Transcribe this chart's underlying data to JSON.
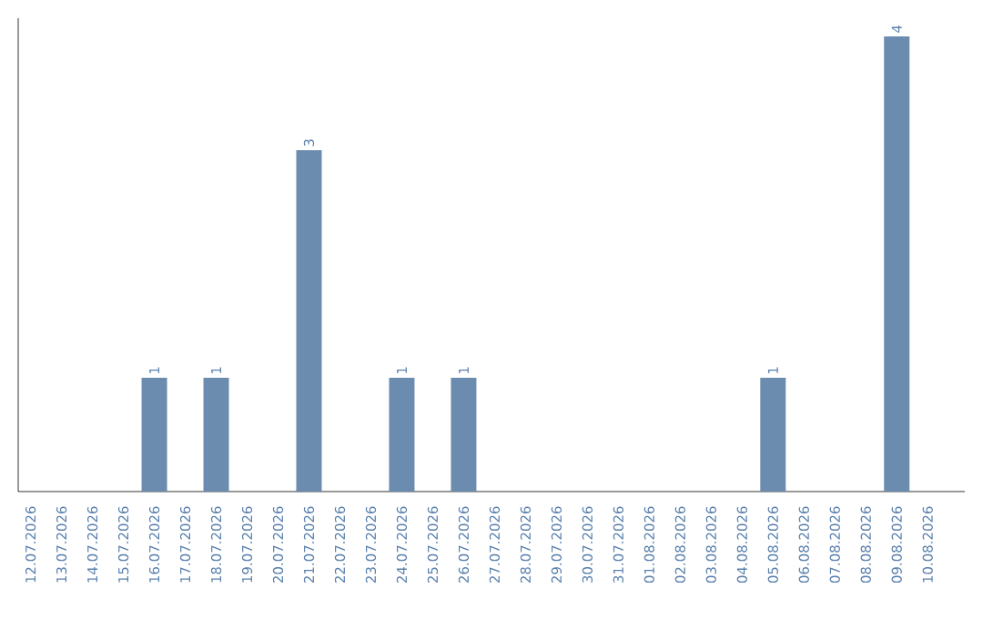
{
  "chart_data": {
    "type": "bar",
    "categories": [
      "12.07.2026",
      "13.07.2026",
      "14.07.2026",
      "15.07.2026",
      "16.07.2026",
      "17.07.2026",
      "18.07.2026",
      "19.07.2026",
      "20.07.2026",
      "21.07.2026",
      "22.07.2026",
      "23.07.2026",
      "24.07.2026",
      "25.07.2026",
      "26.07.2026",
      "27.07.2026",
      "28.07.2026",
      "29.07.2026",
      "30.07.2026",
      "31.07.2026",
      "01.08.2026",
      "02.08.2026",
      "03.08.2026",
      "04.08.2026",
      "05.08.2026",
      "06.08.2026",
      "07.08.2026",
      "08.08.2026",
      "09.08.2026",
      "10.08.2026"
    ],
    "values": [
      0,
      0,
      0,
      0,
      1,
      0,
      1,
      0,
      0,
      3,
      0,
      0,
      1,
      0,
      1,
      0,
      0,
      0,
      0,
      0,
      0,
      0,
      0,
      0,
      1,
      0,
      0,
      0,
      4,
      0
    ],
    "value_labels": [
      null,
      null,
      null,
      null,
      "1",
      null,
      "1",
      null,
      null,
      "3",
      null,
      null,
      "1",
      null,
      "1",
      null,
      null,
      null,
      null,
      null,
      null,
      null,
      null,
      null,
      "1",
      null,
      null,
      null,
      "4",
      null
    ],
    "color": "#6b8cae",
    "ylim": [
      0,
      4.16
    ],
    "tick_labels": "x"
  }
}
